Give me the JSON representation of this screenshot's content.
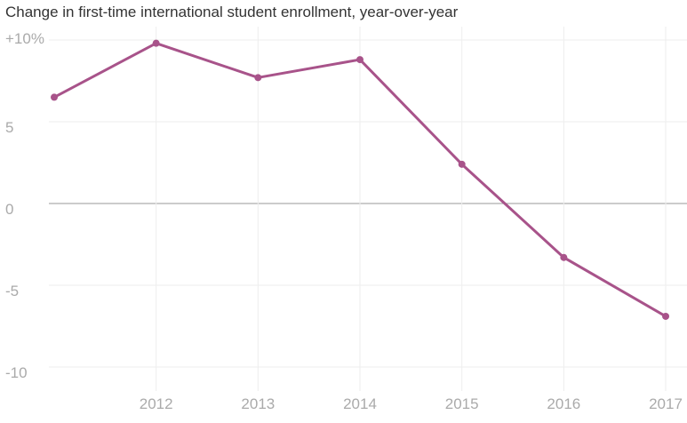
{
  "chart_data": {
    "type": "line",
    "title": "Change in first-time international student enrollment, year-over-year",
    "xlabel": "",
    "ylabel": "",
    "x": [
      2011,
      2012,
      2013,
      2014,
      2015,
      2016,
      2017
    ],
    "x_tick_labels": [
      "2012",
      "2013",
      "2014",
      "2015",
      "2016",
      "2017"
    ],
    "y_ticks": [
      10,
      5,
      0,
      -5,
      -10
    ],
    "y_tick_labels": [
      "+10%",
      "5",
      "0",
      "-5",
      "-10"
    ],
    "ylim": [
      -10,
      10
    ],
    "grid": true,
    "series": [
      {
        "name": "Change in first-time international student enrollment",
        "color": "#a8538a",
        "values": [
          6.5,
          9.8,
          7.7,
          8.8,
          2.4,
          -3.3,
          -6.9
        ]
      }
    ]
  }
}
